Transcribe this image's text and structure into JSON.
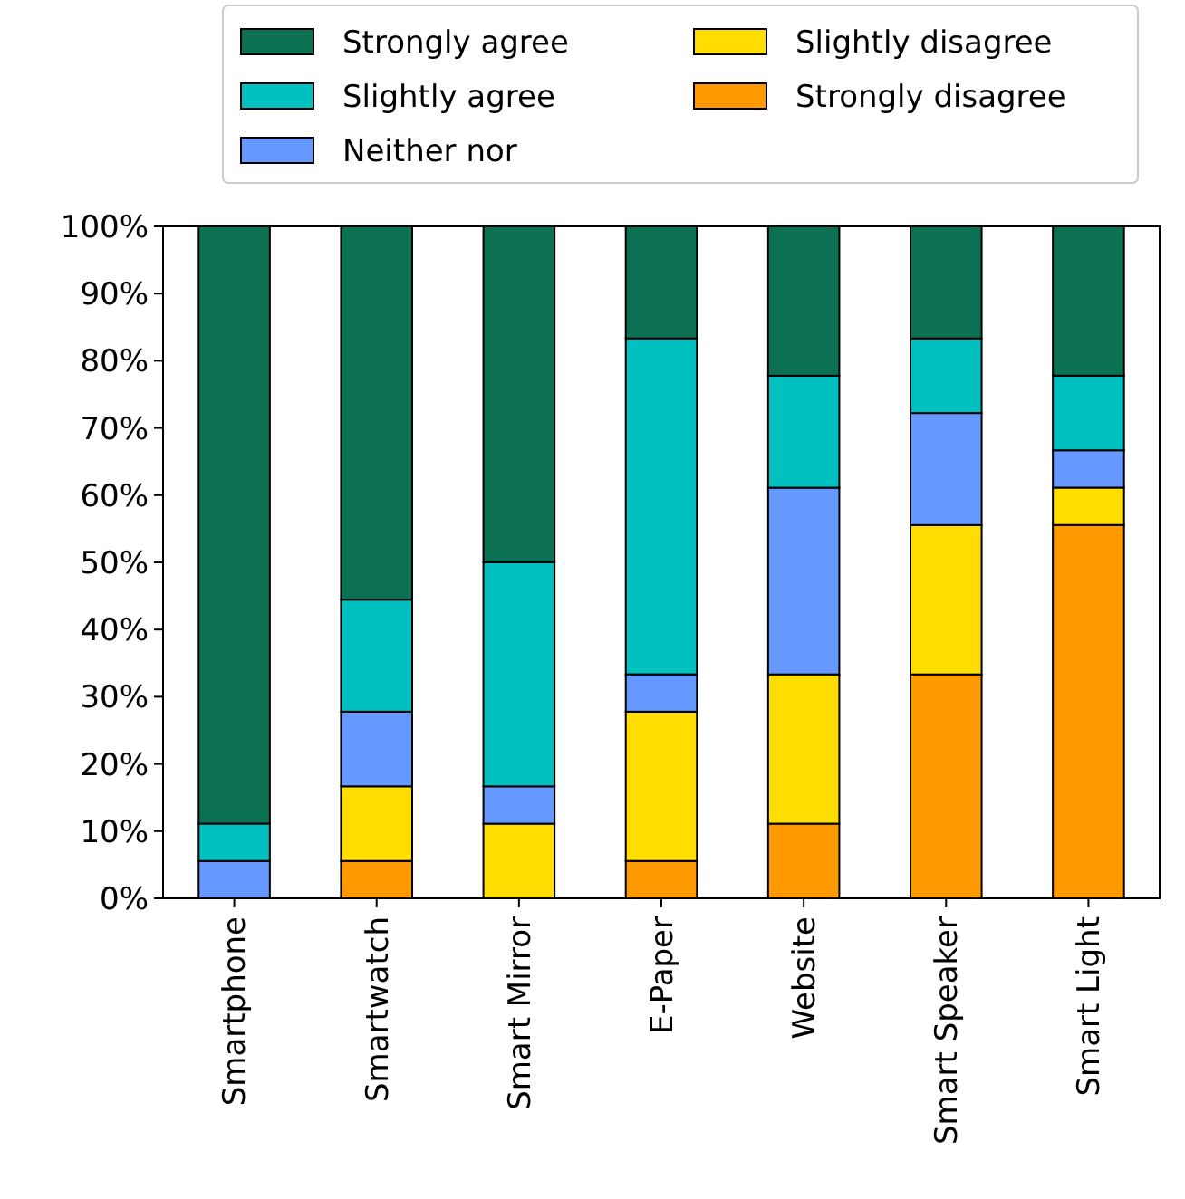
{
  "chart_data": {
    "type": "bar",
    "stacked": true,
    "legend": "top",
    "categories": [
      "Smartphone",
      "Smartwatch",
      "Smart Mirror",
      "E-Paper",
      "Website",
      "Smart Speaker",
      "Smart Light"
    ],
    "ylim": [
      0,
      100
    ],
    "yticks": [
      {
        "value": 0,
        "label": "0%"
      },
      {
        "value": 10,
        "label": "10%"
      },
      {
        "value": 20,
        "label": "20%"
      },
      {
        "value": 30,
        "label": "30%"
      },
      {
        "value": 40,
        "label": "40%"
      },
      {
        "value": 50,
        "label": "50%"
      },
      {
        "value": 60,
        "label": "60%"
      },
      {
        "value": 70,
        "label": "70%"
      },
      {
        "value": 80,
        "label": "80%"
      },
      {
        "value": 90,
        "label": "90%"
      },
      {
        "value": 100,
        "label": "100%"
      }
    ],
    "series": [
      {
        "name": "Strongly disagree",
        "color": "#ff9900",
        "values": [
          0,
          5.56,
          0,
          5.56,
          11.11,
          33.33,
          55.56
        ]
      },
      {
        "name": "Slightly disagree",
        "color": "#ffdd00",
        "values": [
          0,
          11.11,
          11.11,
          22.22,
          22.22,
          22.22,
          5.56
        ]
      },
      {
        "name": "Neither nor",
        "color": "#6699ff",
        "values": [
          5.56,
          11.11,
          5.56,
          5.56,
          27.78,
          16.67,
          5.56
        ]
      },
      {
        "name": "Slightly agree",
        "color": "#00c0c0",
        "values": [
          5.56,
          16.67,
          33.33,
          50,
          16.67,
          11.11,
          11.11
        ]
      },
      {
        "name": "Strongly agree",
        "color": "#0b7152",
        "values": [
          88.89,
          55.56,
          50,
          16.67,
          22.22,
          16.67,
          22.22
        ]
      }
    ]
  }
}
